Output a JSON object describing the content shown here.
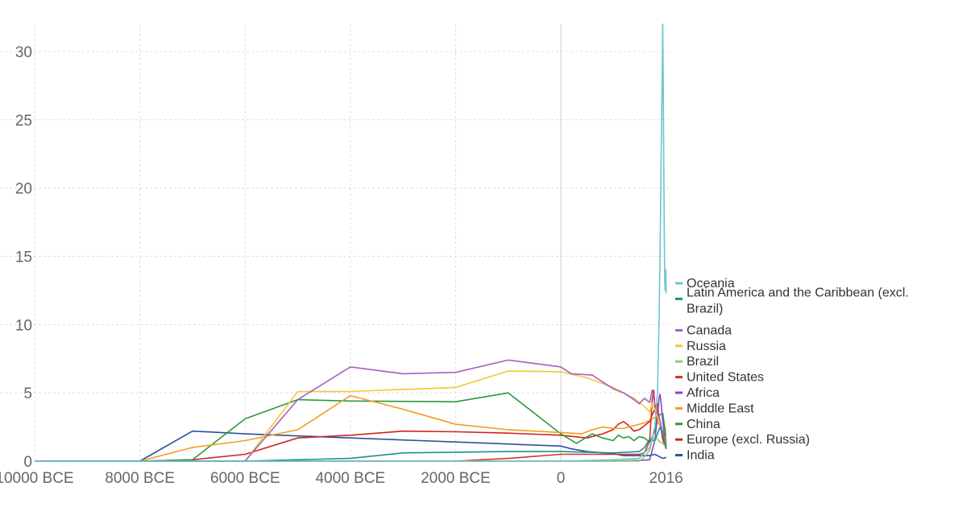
{
  "chart_data": {
    "type": "line",
    "title": "",
    "xlabel": "",
    "ylabel": "",
    "xlim": [
      -10000,
      2020
    ],
    "ylim": [
      0,
      32
    ],
    "grid": true,
    "legend_position": "right",
    "x_ticks": [
      {
        "value": -10000,
        "label": "10000 BCE"
      },
      {
        "value": -8000,
        "label": "8000 BCE"
      },
      {
        "value": -6000,
        "label": "6000 BCE"
      },
      {
        "value": -4000,
        "label": "4000 BCE"
      },
      {
        "value": -2000,
        "label": "2000 BCE"
      },
      {
        "value": 0,
        "label": "0"
      },
      {
        "value": 2016,
        "label": "2016"
      }
    ],
    "y_ticks": [
      {
        "value": 0,
        "label": "0"
      },
      {
        "value": 5,
        "label": "5"
      },
      {
        "value": 10,
        "label": "10"
      },
      {
        "value": 15,
        "label": "15"
      },
      {
        "value": 20,
        "label": "20"
      },
      {
        "value": 25,
        "label": "25"
      },
      {
        "value": 30,
        "label": "30"
      }
    ],
    "series": [
      {
        "name": "Oceania",
        "color": "#6cc4d0",
        "points": [
          [
            -10000,
            0
          ],
          [
            -1000,
            0
          ],
          [
            0,
            0
          ],
          [
            1000,
            0.1
          ],
          [
            1500,
            0.2
          ],
          [
            1700,
            1.0
          ],
          [
            1800,
            2.5
          ],
          [
            1850,
            5
          ],
          [
            1880,
            10
          ],
          [
            1900,
            15
          ],
          [
            1920,
            22
          ],
          [
            1940,
            28
          ],
          [
            1950,
            32
          ],
          [
            1960,
            28
          ],
          [
            1970,
            22
          ],
          [
            1980,
            17
          ],
          [
            1990,
            13
          ],
          [
            2000,
            12.5
          ],
          [
            2010,
            14
          ],
          [
            2016,
            12.3
          ]
        ]
      },
      {
        "name": "Latin America and the Caribbean (excl. Brazil)",
        "color": "#20908c",
        "points": [
          [
            -10000,
            0
          ],
          [
            -6000,
            0
          ],
          [
            -4000,
            0.2
          ],
          [
            -3000,
            0.6
          ],
          [
            -1000,
            0.7
          ],
          [
            0,
            0.7
          ],
          [
            1000,
            0.6
          ],
          [
            1500,
            0.7
          ],
          [
            1600,
            1.0
          ],
          [
            1700,
            1.6
          ],
          [
            1800,
            1.5
          ],
          [
            1850,
            2.0
          ],
          [
            1900,
            2.5
          ],
          [
            1950,
            2.0
          ],
          [
            2000,
            1.3
          ],
          [
            2016,
            1.0
          ]
        ]
      },
      {
        "name": "Canada",
        "color": "#a65fc2",
        "points": [
          [
            -10000,
            0
          ],
          [
            -6000,
            0
          ],
          [
            -5000,
            4.5
          ],
          [
            -4000,
            6.9
          ],
          [
            -3000,
            6.4
          ],
          [
            -2000,
            6.5
          ],
          [
            -1000,
            7.4
          ],
          [
            0,
            6.9
          ],
          [
            200,
            6.4
          ],
          [
            600,
            6.3
          ],
          [
            800,
            5.8
          ],
          [
            1000,
            5.3
          ],
          [
            1200,
            5.0
          ],
          [
            1400,
            4.5
          ],
          [
            1500,
            4.2
          ],
          [
            1600,
            4.6
          ],
          [
            1700,
            4.3
          ],
          [
            1750,
            5.2
          ],
          [
            1800,
            4.2
          ],
          [
            1850,
            3.5
          ],
          [
            1900,
            3.0
          ],
          [
            1950,
            2.0
          ],
          [
            2016,
            1.1
          ]
        ]
      },
      {
        "name": "Russia",
        "color": "#f5c730",
        "points": [
          [
            -10000,
            0
          ],
          [
            -6000,
            0
          ],
          [
            -5000,
            5.1
          ],
          [
            -4000,
            5.1
          ],
          [
            -2000,
            5.4
          ],
          [
            -1000,
            6.6
          ],
          [
            0,
            6.55
          ],
          [
            500,
            6.1
          ],
          [
            1000,
            5.4
          ],
          [
            1200,
            5.0
          ],
          [
            1400,
            4.6
          ],
          [
            1500,
            4.3
          ],
          [
            1600,
            4.0
          ],
          [
            1700,
            3.6
          ],
          [
            1750,
            4.2
          ],
          [
            1800,
            3.8
          ],
          [
            1850,
            3.2
          ],
          [
            1900,
            2.8
          ],
          [
            1950,
            2.0
          ],
          [
            2016,
            1.3
          ]
        ]
      },
      {
        "name": "Brazil",
        "color": "#8dcc6c",
        "points": [
          [
            -10000,
            0
          ],
          [
            1500,
            0
          ],
          [
            1600,
            0.3
          ],
          [
            1700,
            0.8
          ],
          [
            1750,
            1.6
          ],
          [
            1800,
            1.8
          ],
          [
            1850,
            1.6
          ],
          [
            1900,
            1.4
          ],
          [
            1950,
            1.3
          ],
          [
            2000,
            1.1
          ],
          [
            2016,
            1.0
          ]
        ]
      },
      {
        "name": "United States",
        "color": "#d73027",
        "points": [
          [
            -10000,
            0
          ],
          [
            -6000,
            0
          ],
          [
            -5000,
            0
          ],
          [
            -4000,
            0
          ],
          [
            -2000,
            0
          ],
          [
            -1000,
            0.2
          ],
          [
            0,
            0.5
          ],
          [
            1000,
            0.5
          ],
          [
            1500,
            0.5
          ],
          [
            1600,
            0.6
          ],
          [
            1700,
            1.5
          ],
          [
            1750,
            4.5
          ],
          [
            1780,
            5.2
          ],
          [
            1800,
            4.0
          ],
          [
            1830,
            3.0
          ],
          [
            1850,
            4.2
          ],
          [
            1870,
            3.5
          ],
          [
            1900,
            2.8
          ],
          [
            1950,
            1.8
          ],
          [
            2016,
            0.9
          ]
        ]
      },
      {
        "name": "Africa",
        "color": "#8e44c8",
        "points": [
          [
            -10000,
            0
          ],
          [
            -6000,
            0
          ],
          [
            -4000,
            0
          ],
          [
            -2000,
            0
          ],
          [
            0,
            0
          ],
          [
            1000,
            0
          ],
          [
            1500,
            0.05
          ],
          [
            1700,
            0.1
          ],
          [
            1800,
            1.5
          ],
          [
            1850,
            3.2
          ],
          [
            1880,
            4.6
          ],
          [
            1900,
            4.9
          ],
          [
            1920,
            4.2
          ],
          [
            1950,
            3.0
          ],
          [
            1980,
            2.0
          ],
          [
            2016,
            1.2
          ]
        ]
      },
      {
        "name": "Middle East",
        "color": "#f39c1c",
        "points": [
          [
            -10000,
            0
          ],
          [
            -8000,
            0
          ],
          [
            -7000,
            1.0
          ],
          [
            -6000,
            1.5
          ],
          [
            -5000,
            2.3
          ],
          [
            -4000,
            4.8
          ],
          [
            -3000,
            3.8
          ],
          [
            -2000,
            2.7
          ],
          [
            -1000,
            2.3
          ],
          [
            0,
            2.1
          ],
          [
            400,
            2.0
          ],
          [
            600,
            2.3
          ],
          [
            800,
            2.5
          ],
          [
            1000,
            2.4
          ],
          [
            1200,
            2.4
          ],
          [
            1400,
            2.6
          ],
          [
            1600,
            2.8
          ],
          [
            1700,
            3.0
          ],
          [
            1800,
            3.2
          ],
          [
            1900,
            2.6
          ],
          [
            2000,
            1.8
          ],
          [
            2016,
            1.6
          ]
        ]
      },
      {
        "name": "China",
        "color": "#2a9a3c",
        "points": [
          [
            -10000,
            0
          ],
          [
            -8000,
            0
          ],
          [
            -7000,
            0.1
          ],
          [
            -6000,
            3.1
          ],
          [
            -5000,
            4.5
          ],
          [
            -4000,
            4.4
          ],
          [
            -2000,
            4.35
          ],
          [
            -1000,
            5.0
          ],
          [
            0,
            2.0
          ],
          [
            300,
            1.3
          ],
          [
            600,
            2.0
          ],
          [
            800,
            1.7
          ],
          [
            1000,
            1.5
          ],
          [
            1100,
            1.9
          ],
          [
            1200,
            1.7
          ],
          [
            1300,
            1.8
          ],
          [
            1400,
            1.5
          ],
          [
            1500,
            1.8
          ],
          [
            1600,
            1.7
          ],
          [
            1700,
            1.4
          ],
          [
            1800,
            2.2
          ],
          [
            1850,
            3.2
          ],
          [
            1900,
            3.4
          ],
          [
            1950,
            3.5
          ],
          [
            2000,
            2.2
          ],
          [
            2016,
            1.3
          ]
        ]
      },
      {
        "name": "Europe (excl. Russia)",
        "color": "#d1241e",
        "points": [
          [
            -10000,
            0
          ],
          [
            -8000,
            0
          ],
          [
            -7000,
            0.1
          ],
          [
            -6000,
            0.5
          ],
          [
            -5000,
            1.7
          ],
          [
            -4000,
            1.9
          ],
          [
            -3000,
            2.2
          ],
          [
            -2000,
            2.15
          ],
          [
            -1000,
            2.05
          ],
          [
            0,
            1.9
          ],
          [
            500,
            1.7
          ],
          [
            800,
            2.0
          ],
          [
            1000,
            2.3
          ],
          [
            1100,
            2.7
          ],
          [
            1200,
            2.9
          ],
          [
            1300,
            2.6
          ],
          [
            1400,
            2.2
          ],
          [
            1500,
            2.3
          ],
          [
            1600,
            2.6
          ],
          [
            1700,
            2.9
          ],
          [
            1750,
            3.4
          ],
          [
            1800,
            3.8
          ],
          [
            1850,
            3.3
          ],
          [
            1900,
            2.8
          ],
          [
            1950,
            1.6
          ],
          [
            2016,
            0.9
          ]
        ]
      },
      {
        "name": "India",
        "color": "#2950a0",
        "points": [
          [
            -10000,
            0
          ],
          [
            -8000,
            0
          ],
          [
            -7000,
            2.2
          ],
          [
            -6000,
            2.0
          ],
          [
            -4000,
            1.7
          ],
          [
            -2000,
            1.4
          ],
          [
            0,
            1.1
          ],
          [
            200,
            0.9
          ],
          [
            500,
            0.7
          ],
          [
            1000,
            0.55
          ],
          [
            1200,
            0.4
          ],
          [
            1500,
            0.4
          ],
          [
            1700,
            0.4
          ],
          [
            1800,
            0.5
          ],
          [
            1850,
            0.4
          ],
          [
            1900,
            0.3
          ],
          [
            1950,
            0.2
          ],
          [
            2000,
            0.25
          ],
          [
            2016,
            0.3
          ]
        ]
      }
    ]
  }
}
